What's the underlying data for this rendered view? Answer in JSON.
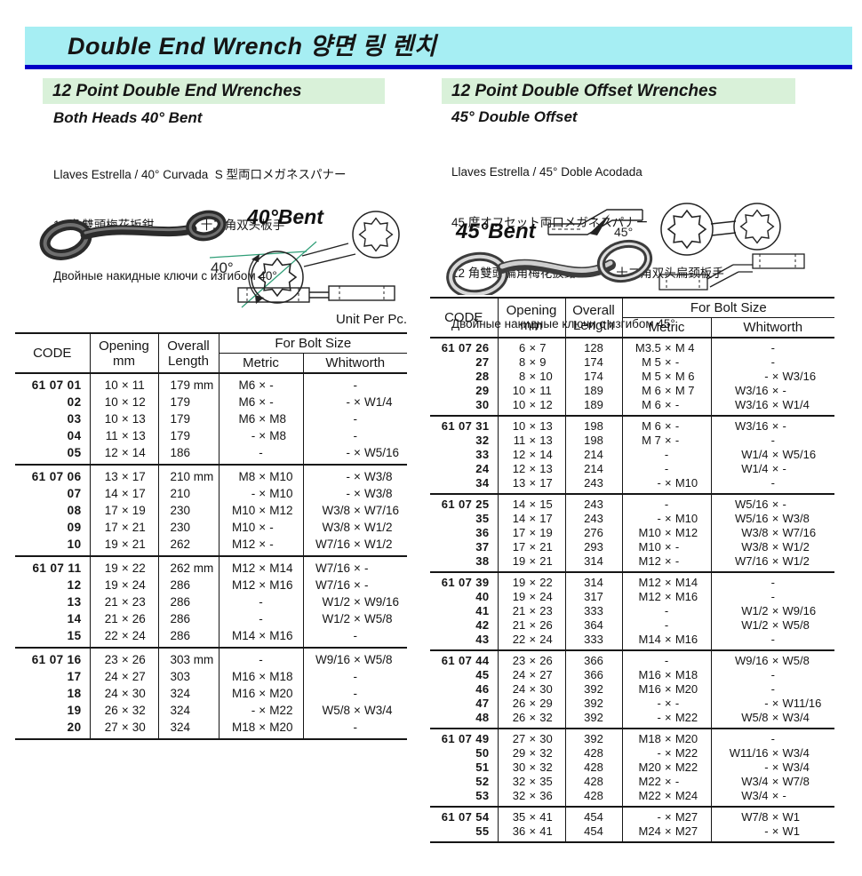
{
  "title": "Double End Wrench  양면 링 렌치",
  "colors": {
    "banner_bg": "#a6eef3",
    "banner_line": "#0000c6",
    "section_bg": "#d9f1d9",
    "diagram_green": "#2f9e77"
  },
  "left_section": {
    "heading": "12 Point Double End Wrenches",
    "subheading": "Both Heads 40° Bent",
    "lang_lines": [
      "Llaves Estrella / 40° Curvada  S 型両口メガネスパナー",
      "12 角雙頭梅花扳鉗              十二角双头板手",
      "Двойные накидные ключи с изгибом 40°"
    ],
    "diagram": {
      "bent_label": "40°Bent",
      "angle_label": "40°"
    },
    "unit_label": "Unit Per Pc.",
    "table": {
      "col_code": "CODE",
      "col_opening": "Opening\nmm",
      "col_overall": "Overall\nLength",
      "col_bolt": "For Bolt Size",
      "col_metric": "Metric",
      "col_whitworth": "Whitworth",
      "groups": [
        [
          [
            "61 07 01",
            "10 × 11",
            "179 mm",
            "M6 × -",
            "-"
          ],
          [
            "02",
            "10 × 12",
            "179",
            "M6 × -",
            "- × W1/4"
          ],
          [
            "03",
            "10 × 13",
            "179",
            "M6 × M8",
            "-"
          ],
          [
            "04",
            "11 × 13",
            "179",
            "- × M8",
            "-"
          ],
          [
            "05",
            "12 × 14",
            "186",
            "-",
            "- × W5/16"
          ]
        ],
        [
          [
            "61 07 06",
            "13 × 17",
            "210 mm",
            "M8 × M10",
            "- × W3/8"
          ],
          [
            "07",
            "14 × 17",
            "210",
            "- × M10",
            "- × W3/8"
          ],
          [
            "08",
            "17 × 19",
            "230",
            "M10 × M12",
            "W3/8 × W7/16"
          ],
          [
            "09",
            "17 × 21",
            "230",
            "M10 × -",
            "W3/8 × W1/2"
          ],
          [
            "10",
            "19 × 21",
            "262",
            "M12 × -",
            "W7/16 × W1/2"
          ]
        ],
        [
          [
            "61 07 11",
            "19 × 22",
            "262 mm",
            "M12 × M14",
            "W7/16 × -"
          ],
          [
            "12",
            "19 × 24",
            "286",
            "M12 × M16",
            "W7/16 × -"
          ],
          [
            "13",
            "21 × 23",
            "286",
            "-",
            "W1/2 × W9/16"
          ],
          [
            "14",
            "21 × 26",
            "286",
            "-",
            "W1/2 × W5/8"
          ],
          [
            "15",
            "22 × 24",
            "286",
            "M14 × M16",
            "-"
          ]
        ],
        [
          [
            "61 07 16",
            "23 × 26",
            "303 mm",
            "-",
            "W9/16 × W5/8"
          ],
          [
            "17",
            "24 × 27",
            "303",
            "M16 × M18",
            "-"
          ],
          [
            "18",
            "24 × 30",
            "324",
            "M16 × M20",
            "-"
          ],
          [
            "19",
            "26 × 32",
            "324",
            "- × M22",
            "W5/8 × W3/4"
          ],
          [
            "20",
            "27 × 30",
            "324",
            "M18 × M20",
            "-"
          ]
        ]
      ]
    }
  },
  "right_section": {
    "heading": "12 Point Double Offset Wrenches",
    "subheading": "45° Double Offset",
    "lang_lines": [
      "Llaves Estrella / 45° Doble Acodada",
      "45 度オフセット両口メガネスパナー",
      "12 角雙頭偏角梅花扳鉗            十二角双头扁颈板手",
      "Двойные накидные ключи с изгибом 45°"
    ],
    "diagram": {
      "bent_label": "45°Bent",
      "angle_label": "45°"
    },
    "table": {
      "col_code": "CODE",
      "col_opening": "Opening\nmm",
      "col_overall": "Overall\nLength",
      "col_bolt": "For Bolt Size",
      "col_metric": "Metric",
      "col_whitworth": "Whitworth",
      "groups": [
        [
          [
            "61 07 26",
            "6 × 7",
            "128",
            "M3.5 × M 4",
            "-"
          ],
          [
            "27",
            "8 × 9",
            "174",
            "M 5 × -",
            "-"
          ],
          [
            "28",
            "8 × 10",
            "174",
            "M 5 × M 6",
            "- × W3/16"
          ],
          [
            "29",
            "10 × 11",
            "189",
            "M 6 × M 7",
            "W3/16 × -"
          ],
          [
            "30",
            "10 × 12",
            "189",
            "M 6 × -",
            "W3/16 × W1/4"
          ]
        ],
        [
          [
            "61 07 31",
            "10 × 13",
            "198",
            "M 6 × -",
            "W3/16 × -"
          ],
          [
            "32",
            "11 × 13",
            "198",
            "M 7 × -",
            "-"
          ],
          [
            "33",
            "12 × 14",
            "214",
            "-",
            "W1/4 × W5/16"
          ],
          [
            "24",
            "12 × 13",
            "214",
            "-",
            "W1/4 × -"
          ],
          [
            "34",
            "13 × 17",
            "243",
            "- × M10",
            "-"
          ]
        ],
        [
          [
            "61 07 25",
            "14 × 15",
            "243",
            "-",
            "W5/16 × -"
          ],
          [
            "35",
            "14 × 17",
            "243",
            "- × M10",
            "W5/16 × W3/8"
          ],
          [
            "36",
            "17 × 19",
            "276",
            "M10 × M12",
            "W3/8 × W7/16"
          ],
          [
            "37",
            "17 × 21",
            "293",
            "M10 × -",
            "W3/8 × W1/2"
          ],
          [
            "38",
            "19 × 21",
            "314",
            "M12 × -",
            "W7/16 × W1/2"
          ]
        ],
        [
          [
            "61 07 39",
            "19 × 22",
            "314",
            "M12 × M14",
            "-"
          ],
          [
            "40",
            "19 × 24",
            "317",
            "M12 × M16",
            "-"
          ],
          [
            "41",
            "21 × 23",
            "333",
            "-",
            "W1/2 × W9/16"
          ],
          [
            "42",
            "21 × 26",
            "364",
            "-",
            "W1/2 × W5/8"
          ],
          [
            "43",
            "22 × 24",
            "333",
            "M14 × M16",
            "-"
          ]
        ],
        [
          [
            "61 07 44",
            "23 × 26",
            "366",
            "-",
            "W9/16 × W5/8"
          ],
          [
            "45",
            "24 × 27",
            "366",
            "M16 × M18",
            "-"
          ],
          [
            "46",
            "24 × 30",
            "392",
            "M16 × M20",
            "-"
          ],
          [
            "47",
            "26 × 29",
            "392",
            "- × -",
            "- × W11/16"
          ],
          [
            "48",
            "26 × 32",
            "392",
            "- × M22",
            "W5/8 × W3/4"
          ]
        ],
        [
          [
            "61 07 49",
            "27 × 30",
            "392",
            "M18 × M20",
            "-"
          ],
          [
            "50",
            "29 × 32",
            "428",
            "- × M22",
            "W11/16 × W3/4"
          ],
          [
            "51",
            "30 × 32",
            "428",
            "M20 × M22",
            "- × W3/4"
          ],
          [
            "52",
            "32 × 35",
            "428",
            "M22 × -",
            "W3/4 × W7/8"
          ],
          [
            "53",
            "32 × 36",
            "428",
            "M22 × M24",
            "W3/4 × -"
          ]
        ],
        [
          [
            "61 07 54",
            "35 × 41",
            "454",
            "- × M27",
            "W7/8 × W1"
          ],
          [
            "55",
            "36 × 41",
            "454",
            "M24 × M27",
            "- × W1"
          ]
        ]
      ]
    }
  }
}
